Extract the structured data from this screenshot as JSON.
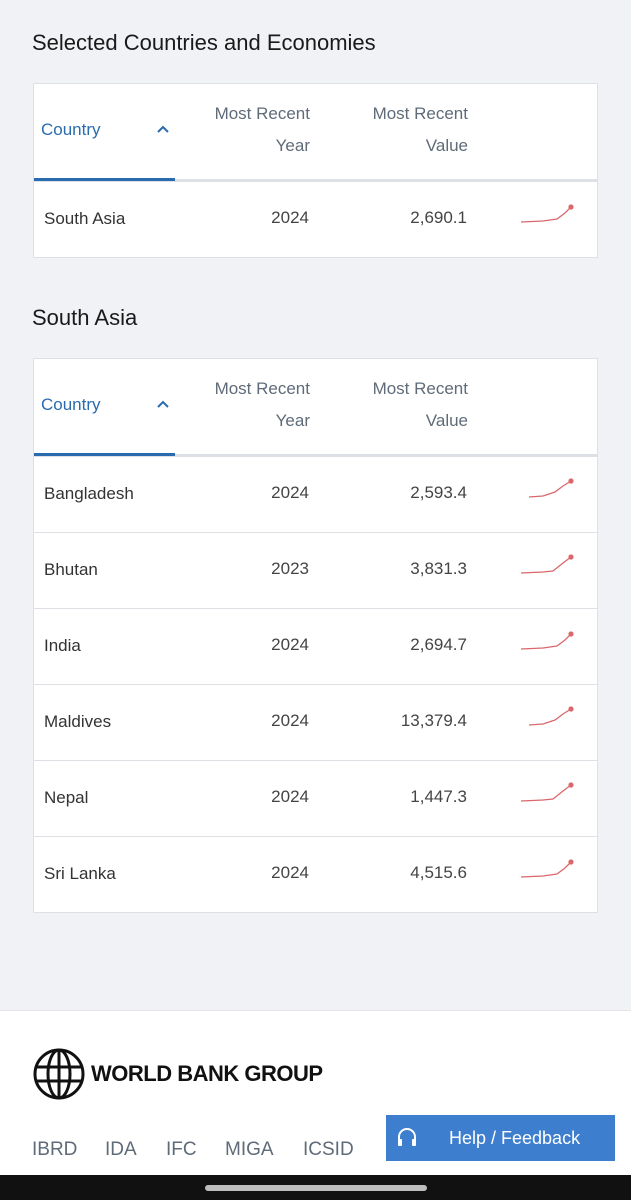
{
  "sections": [
    {
      "title": "Selected Countries and Economies",
      "table": {
        "headers": [
          "Country",
          "Most Recent Year",
          "Most Recent Value"
        ],
        "rows": [
          [
            "South Asia",
            "2024",
            "2,690.1"
          ]
        ]
      }
    },
    {
      "title": "South Asia",
      "table": {
        "headers": [
          "Country",
          "Most Recent Year",
          "Most Recent Value"
        ],
        "rows": [
          [
            "Bangladesh",
            "2024",
            "2,593.4"
          ],
          [
            "Bhutan",
            "2023",
            "3,831.3"
          ],
          [
            "India",
            "2024",
            "2,694.7"
          ],
          [
            "Maldives",
            "2024",
            "13,379.4"
          ],
          [
            "Nepal",
            "2024",
            "1,447.3"
          ],
          [
            "Sri Lanka",
            "2024",
            "4,515.6"
          ]
        ]
      }
    }
  ],
  "footer": {
    "logo": "WORLD BANK GROUP",
    "links": [
      "IBRD",
      "IDA",
      "IFC",
      "MIGA",
      "ICSID"
    ],
    "help": "Help / Feedback"
  }
}
